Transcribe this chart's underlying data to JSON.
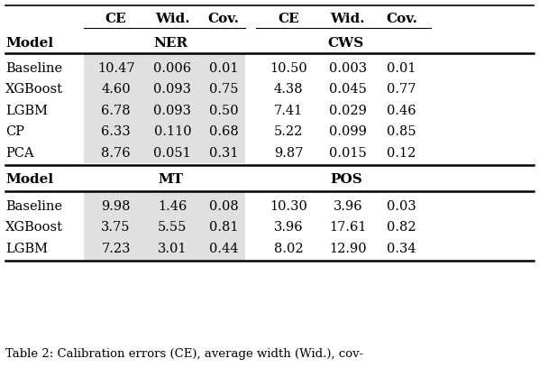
{
  "title_caption": "Table 2: Calibration errors (CE), average width (Wid.), cov-",
  "col_headers": [
    "CE",
    "Wid.",
    "Cov.",
    "CE",
    "Wid.",
    "Cov."
  ],
  "group1_label": "NER",
  "group2_label": "CWS",
  "group3_label": "MT",
  "group4_label": "POS",
  "model_label": "Model",
  "section1_rows": [
    [
      "Baseline",
      "10.47",
      "0.006",
      "0.01",
      "10.50",
      "0.003",
      "0.01"
    ],
    [
      "XGBoost",
      "4.60",
      "0.093",
      "0.75",
      "4.38",
      "0.045",
      "0.77"
    ],
    [
      "LGBM",
      "6.78",
      "0.093",
      "0.50",
      "7.41",
      "0.029",
      "0.46"
    ],
    [
      "CP",
      "6.33",
      "0.110",
      "0.68",
      "5.22",
      "0.099",
      "0.85"
    ],
    [
      "PCA",
      "8.76",
      "0.051",
      "0.31",
      "9.87",
      "0.015",
      "0.12"
    ]
  ],
  "section2_rows": [
    [
      "Baseline",
      "9.98",
      "1.46",
      "0.08",
      "10.30",
      "3.96",
      "0.03"
    ],
    [
      "XGBoost",
      "3.75",
      "5.55",
      "0.81",
      "3.96",
      "17.61",
      "0.82"
    ],
    [
      "LGBM",
      "7.23",
      "3.01",
      "0.44",
      "8.02",
      "12.90",
      "0.34"
    ]
  ],
  "highlight_color": "#e0e0e0",
  "background_color": "#ffffff",
  "text_color": "#000000",
  "figsize": [
    5.98,
    4.18
  ],
  "dpi": 100
}
